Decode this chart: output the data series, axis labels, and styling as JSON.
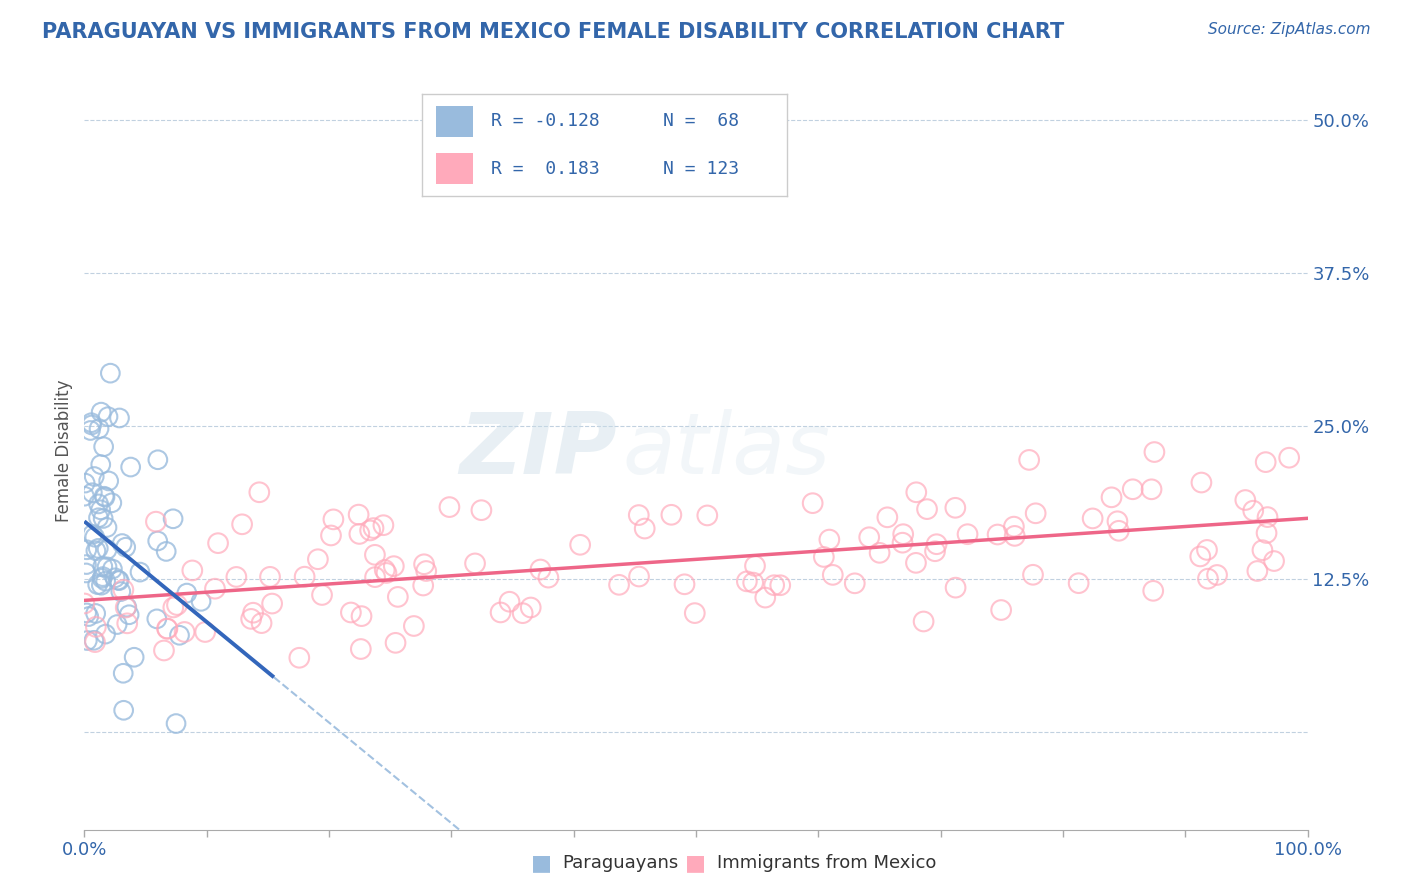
{
  "title": "PARAGUAYAN VS IMMIGRANTS FROM MEXICO FEMALE DISABILITY CORRELATION CHART",
  "source": "Source: ZipAtlas.com",
  "ylabel": "Female Disability",
  "xlim": [
    0,
    1.0
  ],
  "ylim": [
    -0.08,
    0.54
  ],
  "yticks": [
    0.0,
    0.125,
    0.25,
    0.375,
    0.5
  ],
  "ytick_labels": [
    "",
    "12.5%",
    "25.0%",
    "37.5%",
    "50.0%"
  ],
  "series1_name": "Paraguayans",
  "series2_name": "Immigrants from Mexico",
  "color1": "#99BBDD",
  "color2": "#FFAABB",
  "line1_color": "#3366BB",
  "line2_color": "#EE6688",
  "background_color": "#FFFFFF",
  "watermark_zip": "ZIP",
  "watermark_atlas": "atlas",
  "title_color": "#3366AA",
  "axis_color": "#3366AA",
  "grid_color": "#BBCCDD",
  "legend_text_color": "#3366AA",
  "legend_r2_color": "#3366AA",
  "r1": -0.128,
  "n1": 68,
  "r2": 0.183,
  "n2": 123,
  "seed1": 7,
  "seed2": 13,
  "title_fontsize": 15,
  "source_fontsize": 11,
  "tick_fontsize": 13,
  "ylabel_fontsize": 12
}
